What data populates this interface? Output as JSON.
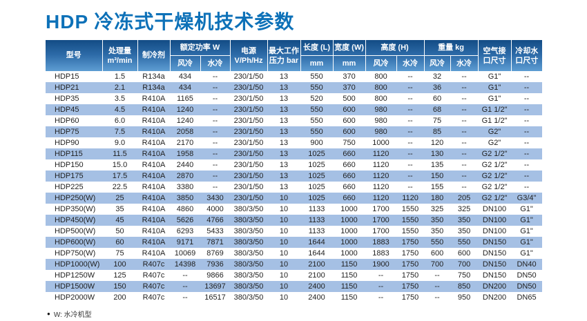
{
  "page": {
    "title": "HDP 冷冻式干燥机技术参数"
  },
  "colors": {
    "title_blue": "#0d71b8",
    "header_gradient_top": "#134c85",
    "header_gradient_bottom": "#5e9dd3",
    "row_stripe": "#a5c0e4",
    "body_text": "#1f1f1f"
  },
  "footnote": {
    "bullet": "●",
    "text": "W: 水冷机型"
  },
  "table": {
    "header": {
      "model": "型号",
      "capacity_l1": "处理量",
      "capacity_l2": "m³/min",
      "refrigerant": "制冷剂",
      "power_group": "额定功率 W",
      "power_air": "风冷",
      "power_water": "水冷",
      "supply_l1": "电源",
      "supply_l2": "V/Ph/Hz",
      "pressure_l1": "最大工作",
      "pressure_l2": "压力 bar",
      "length_group": "长度 (L)",
      "length_unit": "mm",
      "width_group": "宽度 (W)",
      "width_unit": "mm",
      "height_group": "高度 (H)",
      "height_air": "风冷",
      "height_water": "水冷",
      "weight_group": "重量 kg",
      "weight_air": "风冷",
      "weight_water": "水冷",
      "air_port_l1": "空气接",
      "air_port_l2": "口尺寸",
      "water_port_l1": "冷却水",
      "water_port_l2": "口尺寸"
    },
    "rows": [
      [
        "HDP15",
        "1.5",
        "R134a",
        "434",
        "--",
        "230/1/50",
        "13",
        "550",
        "370",
        "800",
        "--",
        "32",
        "--",
        "G1\"",
        "--"
      ],
      [
        "HDP21",
        "2.1",
        "R134a",
        "434",
        "--",
        "230/1/50",
        "13",
        "550",
        "370",
        "800",
        "--",
        "36",
        "--",
        "G1\"",
        "--"
      ],
      [
        "HDP35",
        "3.5",
        "R410A",
        "1165",
        "--",
        "230/1/50",
        "13",
        "520",
        "500",
        "800",
        "--",
        "60",
        "--",
        "G1\"",
        "--"
      ],
      [
        "HDP45",
        "4.5",
        "R410A",
        "1240",
        "--",
        "230/1/50",
        "13",
        "550",
        "600",
        "980",
        "--",
        "68",
        "--",
        "G1 1/2\"",
        "--"
      ],
      [
        "HDP60",
        "6.0",
        "R410A",
        "1240",
        "--",
        "230/1/50",
        "13",
        "550",
        "600",
        "980",
        "--",
        "75",
        "--",
        "G1 1/2\"",
        "--"
      ],
      [
        "HDP75",
        "7.5",
        "R410A",
        "2058",
        "--",
        "230/1/50",
        "13",
        "550",
        "600",
        "980",
        "--",
        "85",
        "--",
        "G2\"",
        "--"
      ],
      [
        "HDP90",
        "9.0",
        "R410A",
        "2170",
        "--",
        "230/1/50",
        "13",
        "900",
        "750",
        "1000",
        "--",
        "120",
        "--",
        "G2\"",
        "--"
      ],
      [
        "HDP115",
        "11.5",
        "R410A",
        "1958",
        "--",
        "230/1/50",
        "13",
        "1025",
        "660",
        "1120",
        "--",
        "130",
        "--",
        "G2 1/2\"",
        "--"
      ],
      [
        "HDP150",
        "15.0",
        "R410A",
        "2440",
        "--",
        "230/1/50",
        "13",
        "1025",
        "660",
        "1120",
        "--",
        "135",
        "--",
        "G2 1/2\"",
        "--"
      ],
      [
        "HDP175",
        "17.5",
        "R410A",
        "2870",
        "--",
        "230/1/50",
        "13",
        "1025",
        "660",
        "1120",
        "--",
        "150",
        "--",
        "G2 1/2\"",
        "--"
      ],
      [
        "HDP225",
        "22.5",
        "R410A",
        "3380",
        "--",
        "230/1/50",
        "13",
        "1025",
        "660",
        "1120",
        "--",
        "155",
        "--",
        "G2 1/2\"",
        "--"
      ],
      [
        "HDP250(W)",
        "25",
        "R410A",
        "3850",
        "3430",
        "230/1/50",
        "10",
        "1025",
        "660",
        "1120",
        "1120",
        "180",
        "205",
        "G2 1/2\"",
        "G3/4\""
      ],
      [
        "HDP350(W)",
        "35",
        "R410A",
        "4860",
        "4000",
        "380/3/50",
        "10",
        "1133",
        "1000",
        "1700",
        "1550",
        "325",
        "325",
        "DN100",
        "G1\""
      ],
      [
        "HDP450(W)",
        "45",
        "R410A",
        "5626",
        "4766",
        "380/3/50",
        "10",
        "1133",
        "1000",
        "1700",
        "1550",
        "350",
        "350",
        "DN100",
        "G1\""
      ],
      [
        "HDP500(W)",
        "50",
        "R410A",
        "6293",
        "5433",
        "380/3/50",
        "10",
        "1133",
        "1000",
        "1700",
        "1550",
        "350",
        "350",
        "DN100",
        "G1\""
      ],
      [
        "HDP600(W)",
        "60",
        "R410A",
        "9171",
        "7871",
        "380/3/50",
        "10",
        "1644",
        "1000",
        "1883",
        "1750",
        "550",
        "550",
        "DN150",
        "G1\""
      ],
      [
        "HDP750(W)",
        "75",
        "R410A",
        "10069",
        "8769",
        "380/3/50",
        "10",
        "1644",
        "1000",
        "1883",
        "1750",
        "600",
        "600",
        "DN150",
        "G1\""
      ],
      [
        "HDP1000(W)",
        "100",
        "R407c",
        "14398",
        "7936",
        "380/3/50",
        "10",
        "2100",
        "1150",
        "1900",
        "1750",
        "700",
        "700",
        "DN150",
        "DN40"
      ],
      [
        "HDP1250W",
        "125",
        "R407c",
        "--",
        "9866",
        "380/3/50",
        "10",
        "2100",
        "1150",
        "--",
        "1750",
        "--",
        "750",
        "DN150",
        "DN50"
      ],
      [
        "HDP1500W",
        "150",
        "R407c",
        "--",
        "13697",
        "380/3/50",
        "10",
        "2400",
        "1150",
        "--",
        "1750",
        "--",
        "850",
        "DN200",
        "DN50"
      ],
      [
        "HDP2000W",
        "200",
        "R407c",
        "--",
        "16517",
        "380/3/50",
        "10",
        "2400",
        "1150",
        "--",
        "1750",
        "--",
        "950",
        "DN200",
        "DN65"
      ]
    ]
  }
}
